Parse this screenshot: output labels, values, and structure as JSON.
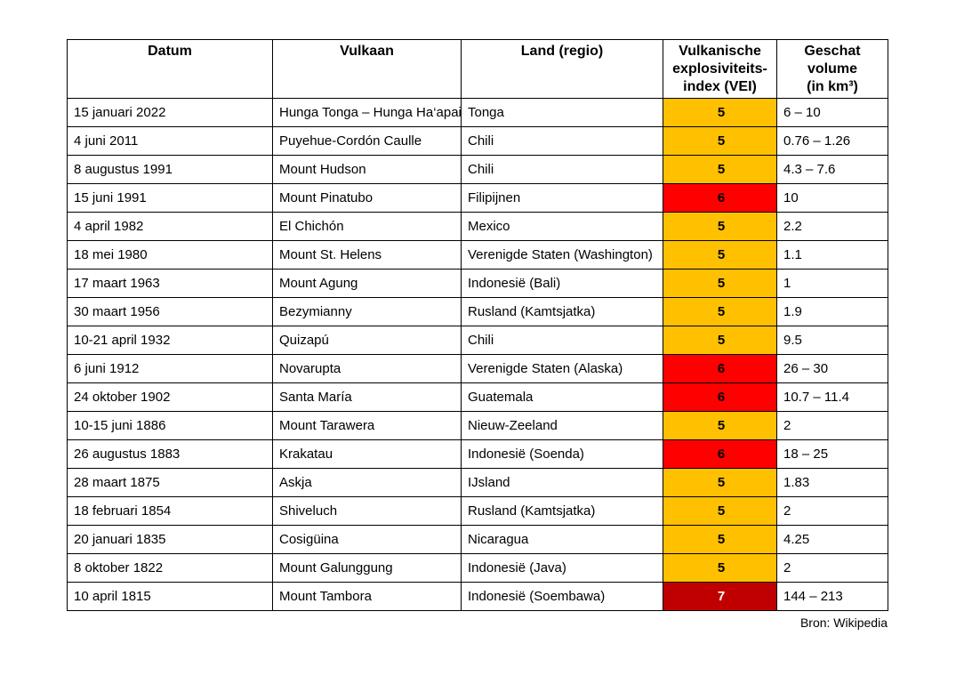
{
  "table": {
    "headers": [
      "Datum",
      "Vulkaan",
      "Land (regio)",
      "Vulkanische\nexplosiviteits-\nindex (VEI)",
      "Geschat\nvolume\n(in km³)"
    ],
    "rows": [
      {
        "datum": "15 januari 2022",
        "vulkaan": "Hunga Tonga – Hunga Ha‘apai",
        "land": "Tonga",
        "vei": "5",
        "vei_level": "5",
        "volume": "6 – 10"
      },
      {
        "datum": "4 juni 2011",
        "vulkaan": "Puyehue-Cordón Caulle",
        "land": "Chili",
        "vei": "5",
        "vei_level": "5",
        "volume": "0.76 – 1.26"
      },
      {
        "datum": "8 augustus 1991",
        "vulkaan": "Mount Hudson",
        "land": "Chili",
        "vei": "5",
        "vei_level": "5",
        "volume": "4.3 – 7.6"
      },
      {
        "datum": "15 juni 1991",
        "vulkaan": "Mount Pinatubo",
        "land": "Filipijnen",
        "vei": "6",
        "vei_level": "6",
        "volume": "10"
      },
      {
        "datum": "4 april 1982",
        "vulkaan": "El Chichón",
        "land": "Mexico",
        "vei": "5",
        "vei_level": "5",
        "volume": "2.2"
      },
      {
        "datum": "18 mei 1980",
        "vulkaan": "Mount St. Helens",
        "land": "Verenigde Staten (Washington)",
        "vei": "5",
        "vei_level": "5",
        "volume": "1.1"
      },
      {
        "datum": "17 maart 1963",
        "vulkaan": "Mount Agung",
        "land": "Indonesië (Bali)",
        "vei": "5",
        "vei_level": "5",
        "volume": "1"
      },
      {
        "datum": "30 maart 1956",
        "vulkaan": "Bezymianny",
        "land": "Rusland (Kamtsjatka)",
        "vei": "5",
        "vei_level": "5",
        "volume": "1.9"
      },
      {
        "datum": "10-21 april 1932",
        "vulkaan": "Quizapú",
        "land": "Chili",
        "vei": "5",
        "vei_level": "5",
        "volume": "9.5"
      },
      {
        "datum": "6 juni 1912",
        "vulkaan": "Novarupta",
        "land": "Verenigde Staten (Alaska)",
        "vei": "6",
        "vei_level": "6",
        "volume": "26 – 30"
      },
      {
        "datum": "24 oktober 1902",
        "vulkaan": "Santa María",
        "land": "Guatemala",
        "vei": "6",
        "vei_level": "6",
        "volume": "10.7 – 11.4"
      },
      {
        "datum": "10-15 juni 1886",
        "vulkaan": "Mount Tarawera",
        "land": "Nieuw-Zeeland",
        "vei": "5",
        "vei_level": "5",
        "volume": "2"
      },
      {
        "datum": "26 augustus 1883",
        "vulkaan": "Krakatau",
        "land": "Indonesië (Soenda)",
        "vei": "6",
        "vei_level": "6",
        "volume": "18 – 25"
      },
      {
        "datum": "28 maart 1875",
        "vulkaan": "Askja",
        "land": "IJsland",
        "vei": "5",
        "vei_level": "5",
        "volume": "1.83"
      },
      {
        "datum": "18 februari 1854",
        "vulkaan": "Shiveluch",
        "land": "Rusland (Kamtsjatka)",
        "vei": "5",
        "vei_level": "5",
        "volume": "2"
      },
      {
        "datum": "20 januari 1835",
        "vulkaan": "Cosigüina",
        "land": "Nicaragua",
        "vei": "5",
        "vei_level": "5",
        "volume": "4.25"
      },
      {
        "datum": "8 oktober 1822",
        "vulkaan": "Mount Galunggung",
        "land": "Indonesië (Java)",
        "vei": "5",
        "vei_level": "5",
        "volume": "2"
      },
      {
        "datum": "10 april 1815",
        "vulkaan": "Mount Tambora",
        "land": "Indonesië (Soembawa)",
        "vei": "7",
        "vei_level": "7",
        "volume": "144 – 213"
      }
    ]
  },
  "vei_colors": {
    "5": {
      "bg": "#FFC000",
      "text": "#000000"
    },
    "6": {
      "bg": "#FF0000",
      "text": "#000000"
    },
    "7": {
      "bg": "#C00000",
      "text": "#FFFFFF"
    }
  },
  "source": "Bron: Wikipedia"
}
